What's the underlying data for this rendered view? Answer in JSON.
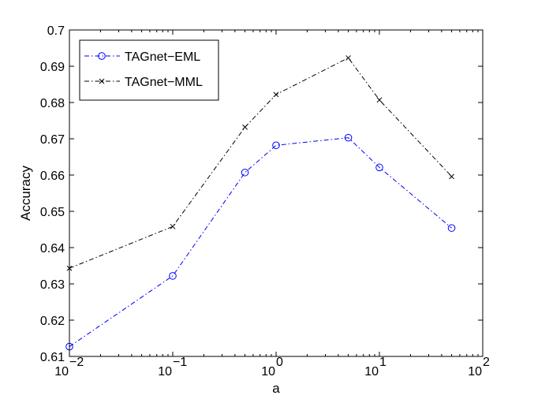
{
  "chart_data": {
    "type": "line",
    "xscale": "log",
    "xlabel": "a",
    "ylabel": "Accuracy",
    "xlim": [
      0.01,
      100
    ],
    "ylim": [
      0.61,
      0.7
    ],
    "grid": false,
    "legend_position": "top-left",
    "x": [
      0.01,
      0.1,
      0.5,
      1,
      5,
      10,
      50
    ],
    "xticks": [
      {
        "value": 0.01,
        "base": "10",
        "exp": "−2"
      },
      {
        "value": 0.1,
        "base": "10",
        "exp": "−1"
      },
      {
        "value": 1,
        "base": "10",
        "exp": "0"
      },
      {
        "value": 10,
        "base": "10",
        "exp": "1"
      },
      {
        "value": 100,
        "base": "10",
        "exp": "2"
      }
    ],
    "yticks": [
      "0.61",
      "0.62",
      "0.63",
      "0.64",
      "0.65",
      "0.66",
      "0.67",
      "0.68",
      "0.69",
      "0.7"
    ],
    "series": [
      {
        "name": "TAGnet−EML",
        "values": [
          0.6127,
          0.6322,
          0.6607,
          0.6682,
          0.6703,
          0.6621,
          0.6454
        ],
        "color": "#0000ff",
        "marker": "circle",
        "dash": "dashdot"
      },
      {
        "name": "TAGnet−MML",
        "values": [
          0.6343,
          0.6458,
          0.6732,
          0.6822,
          0.6923,
          0.6807,
          0.6596
        ],
        "color": "#000000",
        "marker": "x",
        "dash": "dashdot"
      }
    ]
  }
}
